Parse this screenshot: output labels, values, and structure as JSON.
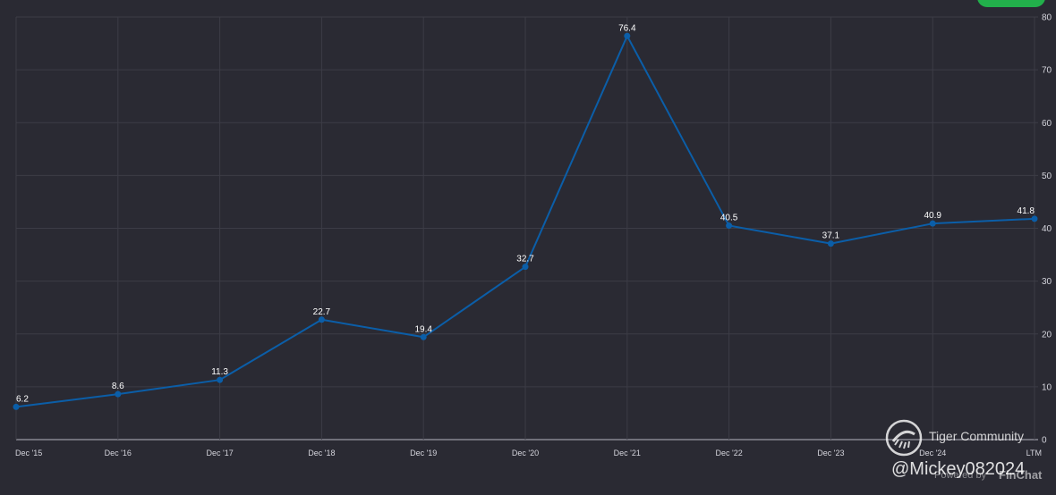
{
  "chart_data": {
    "type": "line",
    "categories": [
      "Dec '15",
      "Dec '16",
      "Dec '17",
      "Dec '18",
      "Dec '19",
      "Dec '20",
      "Dec '21",
      "Dec '22",
      "Dec '23",
      "Dec '24",
      "LTM"
    ],
    "values": [
      6.2,
      8.6,
      11.3,
      22.7,
      19.4,
      32.7,
      76.4,
      40.5,
      37.1,
      40.9,
      41.8
    ],
    "ylim": [
      0,
      80
    ],
    "yticks": [
      0,
      10,
      20,
      30,
      40,
      50,
      60,
      70,
      80
    ],
    "y_axis_side": "right",
    "grid": true,
    "data_labels": true
  },
  "colors": {
    "background": "#2a2a33",
    "grid": "#3c3c46",
    "line": "#0b5ea8",
    "point": "#0b5ea8",
    "text": "#d4d4dc",
    "badge": "#22b04b"
  },
  "watermark": {
    "community": "Tiger Community",
    "handle": "@Mickey082024",
    "powered_by": "Powered by",
    "brand": "FinChat"
  }
}
